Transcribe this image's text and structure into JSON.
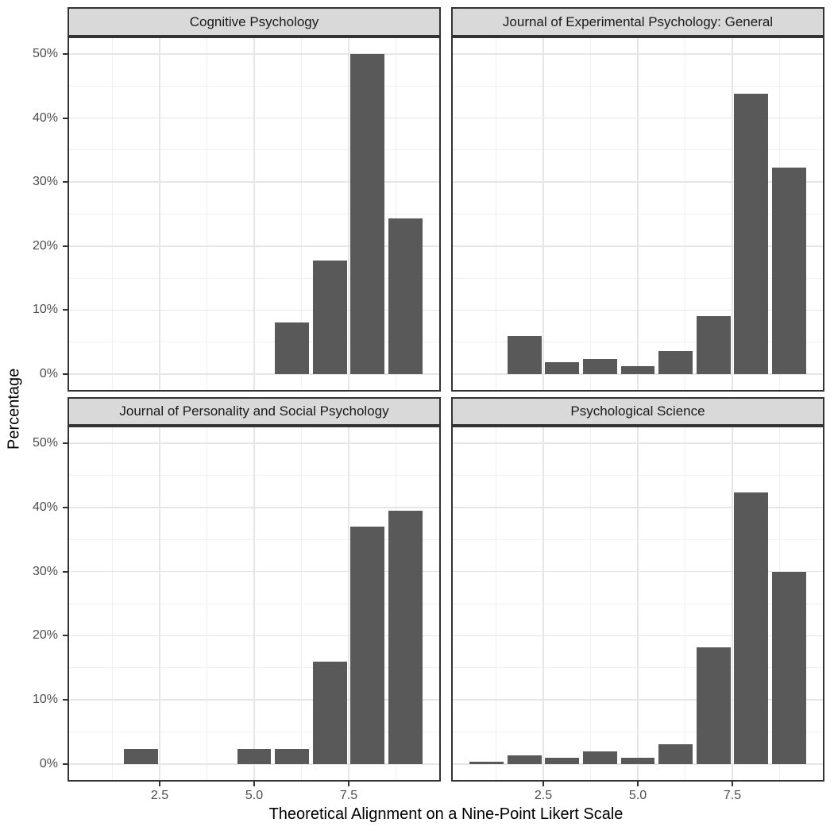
{
  "colors": {
    "bar_fill": "#595959",
    "strip_background": "#d9d9d9",
    "strip_text": "#1a1a1a",
    "panel_border": "#333333",
    "grid_major": "#e6e6e6",
    "grid_minor": "#f0f0f0",
    "tick_mark": "#333333",
    "tick_label": "#4d4d4d",
    "axis_title": "#000000",
    "background": "#ffffff"
  },
  "chart_data": {
    "type": "bar",
    "title": "",
    "xlabel": "Theoretical Alignment on a Nine-Point Likert Scale",
    "ylabel": "Percentage",
    "x_domain": [
      0.105,
      9.895
    ],
    "y_domain": [
      -2.5,
      52.5
    ],
    "bar_width": 0.9,
    "grid": true,
    "x_major_ticks": [
      2.5,
      5.0,
      7.5
    ],
    "x_tick_labels": [
      "2.5",
      "5.0",
      "7.5"
    ],
    "x_minor_ticks": [
      1.25,
      3.75,
      6.25,
      8.75
    ],
    "y_major_ticks": [
      0,
      10,
      20,
      30,
      40,
      50
    ],
    "y_tick_labels": [
      "0%",
      "10%",
      "20%",
      "30%",
      "40%",
      "50%"
    ],
    "y_minor_ticks": [
      5,
      15,
      25,
      35,
      45
    ],
    "facets": [
      {
        "title": "Cognitive Psychology",
        "values": [
          {
            "x": 6,
            "pct": 8.0
          },
          {
            "x": 7,
            "pct": 17.7
          },
          {
            "x": 8,
            "pct": 50.0
          },
          {
            "x": 9,
            "pct": 24.3
          }
        ]
      },
      {
        "title": "Journal of Experimental Psychology: General",
        "values": [
          {
            "x": 2,
            "pct": 6.0
          },
          {
            "x": 3,
            "pct": 1.8
          },
          {
            "x": 4,
            "pct": 2.4
          },
          {
            "x": 5,
            "pct": 1.2
          },
          {
            "x": 6,
            "pct": 3.6
          },
          {
            "x": 7,
            "pct": 9.0
          },
          {
            "x": 8,
            "pct": 43.8
          },
          {
            "x": 9,
            "pct": 32.3
          }
        ]
      },
      {
        "title": "Journal of Personality and Social Psychology",
        "values": [
          {
            "x": 2,
            "pct": 2.3
          },
          {
            "x": 5,
            "pct": 2.3
          },
          {
            "x": 6,
            "pct": 2.3
          },
          {
            "x": 7,
            "pct": 16.0
          },
          {
            "x": 8,
            "pct": 37.0
          },
          {
            "x": 9,
            "pct": 39.5
          }
        ]
      },
      {
        "title": "Psychological Science",
        "values": [
          {
            "x": 1,
            "pct": 0.4
          },
          {
            "x": 2,
            "pct": 1.4
          },
          {
            "x": 3,
            "pct": 1.0
          },
          {
            "x": 4,
            "pct": 1.9
          },
          {
            "x": 5,
            "pct": 1.0
          },
          {
            "x": 6,
            "pct": 3.1
          },
          {
            "x": 7,
            "pct": 18.2
          },
          {
            "x": 8,
            "pct": 42.3
          },
          {
            "x": 9,
            "pct": 30.0
          }
        ]
      }
    ]
  }
}
